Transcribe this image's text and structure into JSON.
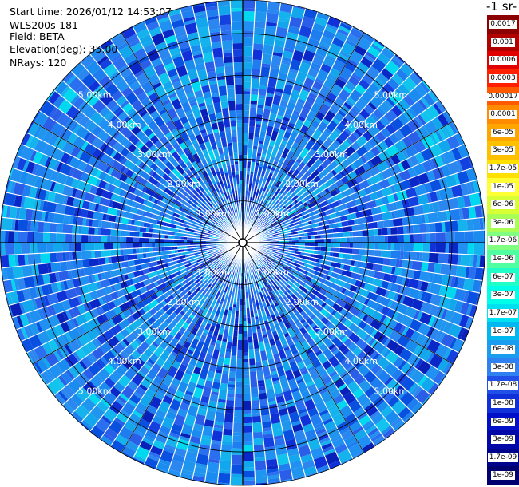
{
  "info": {
    "start_time": "Start time: 2026/01/12 14:53:07",
    "instrument": "WLS200s-181",
    "field": "Field: BETA",
    "elevation": "Elevation(deg): 35.00",
    "nrays": "NRays: 120"
  },
  "colorbar": {
    "title": "-1 sr-",
    "labels": [
      "0.0017",
      "0.001",
      "0.0006",
      "0.0003",
      "0.00017",
      "0.0001",
      "6e-05",
      "3e-05",
      "1.7e-05",
      "1e-05",
      "6e-06",
      "3e-06",
      "1.7e-06",
      "1e-06",
      "6e-07",
      "3e-07",
      "1.7e-07",
      "1e-07",
      "6e-08",
      "3e-08",
      "1.7e-08",
      "1e-08",
      "6e-09",
      "3e-09",
      "1.7e-09",
      "1e-09"
    ],
    "colors": [
      "#8b0000",
      "#b00000",
      "#e00000",
      "#ff2000",
      "#ff5a00",
      "#ff8c00",
      "#ffa500",
      "#ffc000",
      "#ffe000",
      "#ffff33",
      "#d8ff33",
      "#a8ff55",
      "#80ff80",
      "#50ffa0",
      "#20ffc8",
      "#00ffe8",
      "#00e0f0",
      "#00b8f0",
      "#1a9cf0",
      "#2f80f0",
      "#2050e8",
      "#1030d8",
      "#0010c8",
      "#0008a8",
      "#00048c",
      "#00006e"
    ]
  },
  "chart_data": {
    "type": "polar-ppi",
    "rays": 120,
    "range_unit": "km",
    "range_rings_km": [
      1,
      2,
      3,
      4,
      5
    ],
    "ring_labels": [
      "1.00km",
      "2.00km",
      "3.00km",
      "4.00km",
      "5.00km"
    ],
    "max_range_km": 5.8,
    "dominant_value_range": [
      1e-08,
      1e-07
    ]
  }
}
